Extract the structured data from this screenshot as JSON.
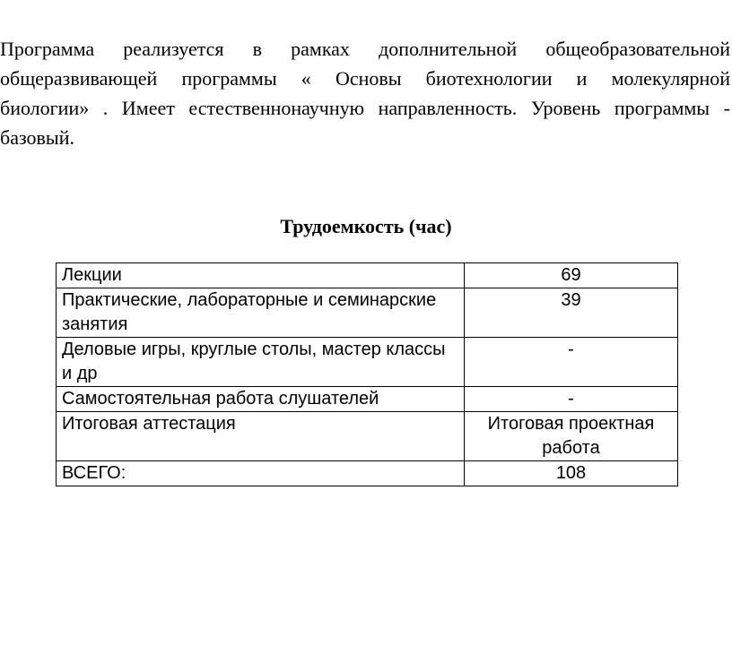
{
  "paragraph": {
    "lines": [
      "Программа реализуется в рамках дополнительной общеобразовательной",
      "общеразвивающей программы « Основы  биотехнологии  и молекулярной",
      "биологии» . Имеет естественнонаучную направленность. Уровень программы -",
      "базовый."
    ]
  },
  "heading": "Трудоемкость (час)",
  "table": {
    "rows": [
      [
        "Лекции",
        69
      ],
      [
        "Практические, лабораторные и семинарские занятия",
        39
      ],
      [
        "Деловые игры, круглые столы, мастер классы и др",
        "-"
      ],
      [
        "Самостоятельная работа слушателей",
        "-"
      ],
      [
        "Итоговая аттестация",
        "Итоговая проектная работа"
      ],
      [
        "ВСЕГО:",
        108
      ]
    ]
  }
}
